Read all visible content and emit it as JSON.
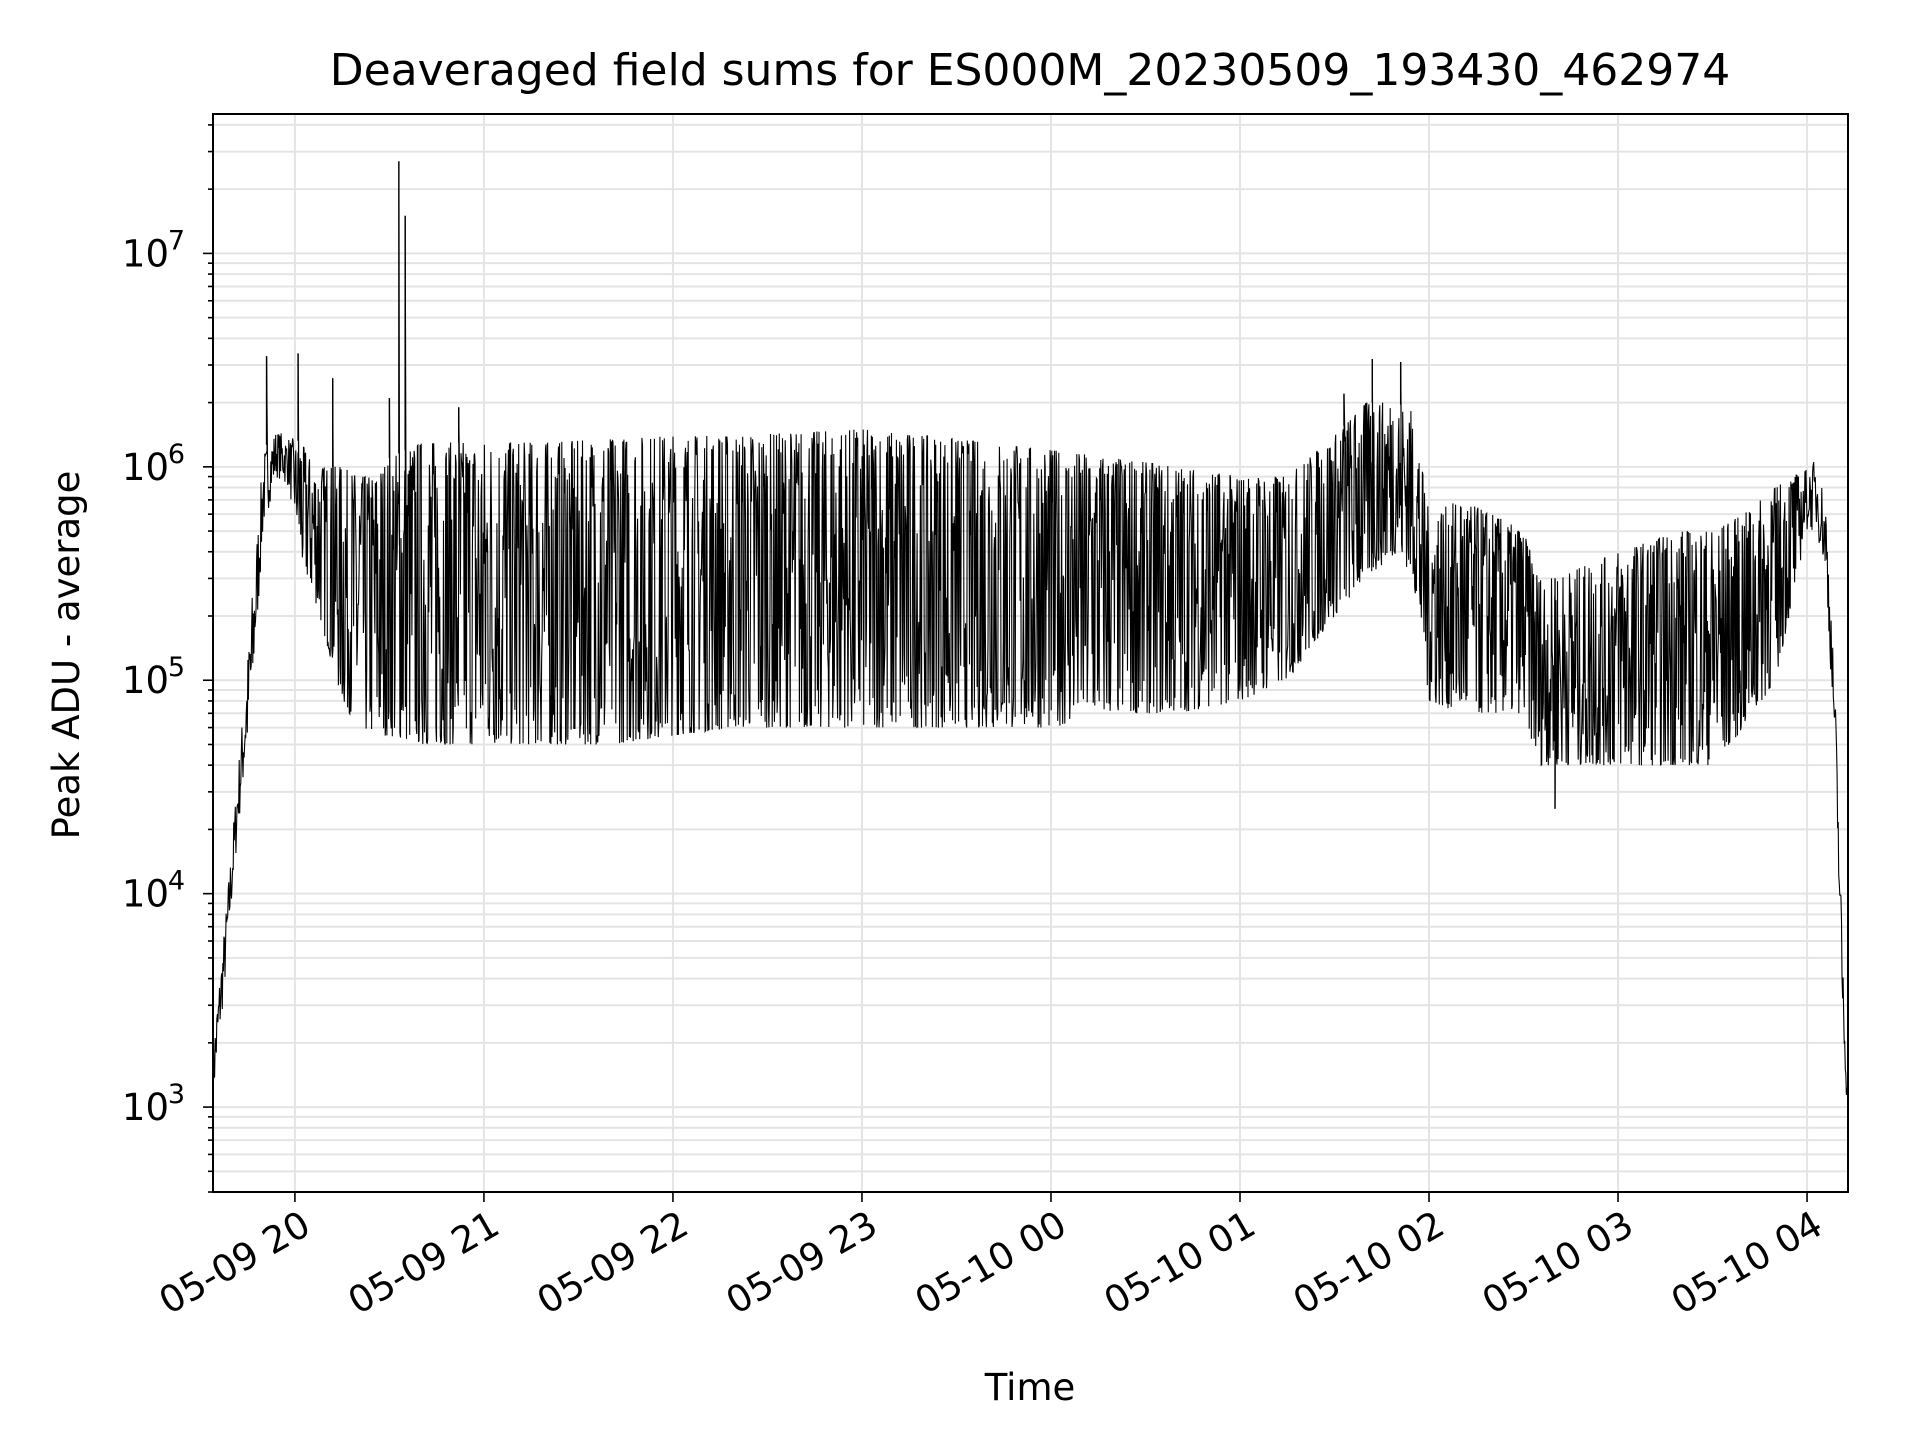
{
  "chart_data": {
    "type": "line",
    "title": "Deaveraged field sums for ES000M_20230509_193430_462974",
    "xlabel": "Time",
    "ylabel": "Peak ADU - average",
    "y_scale": "log",
    "ylim": [
      400,
      45000000
    ],
    "xlim": [
      "05-09 19:34",
      "05-10 04:13"
    ],
    "grid": true,
    "x_tick_labels": [
      "05-09 20",
      "05-09 21",
      "05-09 22",
      "05-09 23",
      "05-10 00",
      "05-10 01",
      "05-10 02",
      "05-10 03",
      "05-10 04"
    ],
    "y_ticks": [
      {
        "base": "10",
        "exp": "3"
      },
      {
        "base": "10",
        "exp": "4"
      },
      {
        "base": "10",
        "exp": "5"
      },
      {
        "base": "10",
        "exp": "6"
      },
      {
        "base": "10",
        "exp": "7"
      }
    ],
    "line_color": "#000000",
    "grid_color": "#e4e4e4",
    "envelope": {
      "time": [
        "05-09 19:34",
        "05-09 19:38",
        "05-09 19:42",
        "05-09 19:46",
        "05-09 19:50",
        "05-09 19:54",
        "05-09 19:58",
        "05-09 20:02",
        "05-09 20:06",
        "05-09 20:10",
        "05-09 20:15",
        "05-09 20:20",
        "05-09 20:25",
        "05-09 20:30",
        "05-09 20:40",
        "05-09 20:50",
        "05-09 21:00",
        "05-09 21:10",
        "05-09 21:20",
        "05-09 21:40",
        "05-09 22:00",
        "05-09 22:20",
        "05-09 22:40",
        "05-09 23:00",
        "05-09 23:20",
        "05-09 23:40",
        "05-10 00:00",
        "05-10 00:20",
        "05-10 00:40",
        "05-10 01:00",
        "05-10 01:15",
        "05-10 01:30",
        "05-10 01:40",
        "05-10 01:50",
        "05-10 01:55",
        "05-10 02:00",
        "05-10 02:10",
        "05-10 02:20",
        "05-10 02:30",
        "05-10 02:35",
        "05-10 02:40",
        "05-10 03:00",
        "05-10 03:20",
        "05-10 03:30",
        "05-10 03:40",
        "05-10 03:50",
        "05-10 04:00",
        "05-10 04:03",
        "05-10 04:06",
        "05-10 04:09",
        "05-10 04:11",
        "05-10 04:13"
      ],
      "low": [
        1000,
        4000,
        20000,
        60000,
        500000,
        900000,
        800000,
        350000,
        250000,
        150000,
        80000,
        60000,
        55000,
        55000,
        50000,
        50000,
        50000,
        50000,
        50000,
        50000,
        55000,
        60000,
        60000,
        60000,
        60000,
        60000,
        60000,
        70000,
        70000,
        80000,
        100000,
        200000,
        300000,
        400000,
        300000,
        80000,
        70000,
        70000,
        70000,
        40000,
        40000,
        40000,
        40000,
        40000,
        60000,
        100000,
        500000,
        500000,
        300000,
        40000,
        3000,
        800
      ],
      "high": [
        2000,
        8000,
        40000,
        200000,
        1200000,
        1500000,
        1400000,
        1300000,
        1000000,
        1000000,
        1000000,
        900000,
        900000,
        1100000,
        1300000,
        1300000,
        1300000,
        1300000,
        1300000,
        1350000,
        1400000,
        1400000,
        1450000,
        1500000,
        1400000,
        1300000,
        1200000,
        1100000,
        1000000,
        900000,
        900000,
        1400000,
        2000000,
        2000000,
        1800000,
        600000,
        700000,
        600000,
        500000,
        300000,
        300000,
        400000,
        500000,
        500000,
        600000,
        800000,
        1000000,
        1100000,
        700000,
        80000,
        8000,
        1000
      ]
    },
    "spikes": [
      {
        "time": "05-09 19:51",
        "value": 3300000
      },
      {
        "time": "05-09 20:01",
        "value": 3400000
      },
      {
        "time": "05-09 20:12",
        "value": 2600000
      },
      {
        "time": "05-09 20:30",
        "value": 2100000
      },
      {
        "time": "05-09 20:33",
        "value": 27000000
      },
      {
        "time": "05-09 20:35",
        "value": 15000000
      },
      {
        "time": "05-09 20:52",
        "value": 1900000
      },
      {
        "time": "05-10 01:33",
        "value": 2200000
      },
      {
        "time": "05-10 01:42",
        "value": 3200000
      },
      {
        "time": "05-10 01:51",
        "value": 3100000
      },
      {
        "time": "05-10 02:40",
        "value": 25000
      }
    ]
  }
}
